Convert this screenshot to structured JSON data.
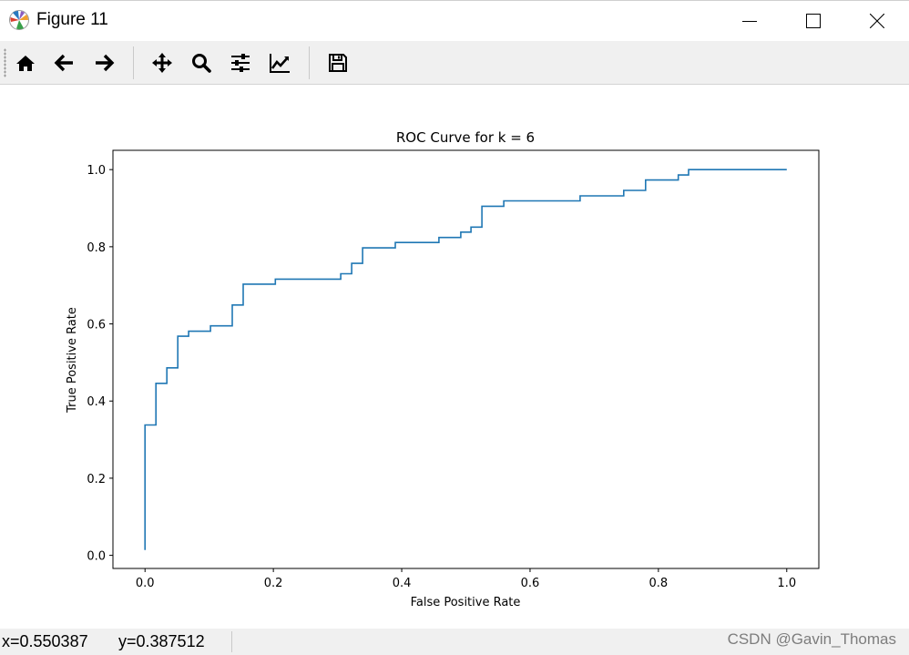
{
  "window": {
    "title": "Figure 11",
    "app_icon": "matplotlib-logo-icon",
    "controls": [
      "minimize-icon",
      "maximize-icon",
      "close-icon"
    ]
  },
  "toolbar": {
    "buttons": [
      {
        "name": "home",
        "icon": "home-icon"
      },
      {
        "name": "back",
        "icon": "arrow-left-icon"
      },
      {
        "name": "forward",
        "icon": "arrow-right-icon"
      },
      {
        "name": "pan",
        "icon": "move-icon"
      },
      {
        "name": "zoom",
        "icon": "magnifier-icon"
      },
      {
        "name": "subplots",
        "icon": "sliders-icon"
      },
      {
        "name": "edit-axis",
        "icon": "line-chart-icon"
      },
      {
        "name": "save",
        "icon": "floppy-disk-icon"
      }
    ]
  },
  "status": {
    "x_readout": "x=0.550387",
    "y_readout": "y=0.387512",
    "watermark": "CSDN @Gavin_Thomas"
  },
  "chart_data": {
    "type": "line",
    "title": "ROC Curve for k = 6",
    "xlabel": "False Positive Rate",
    "ylabel": "True Positive Rate",
    "xlim": [
      -0.05,
      1.05
    ],
    "ylim": [
      -0.034,
      1.05
    ],
    "xticks": [
      0.0,
      0.2,
      0.4,
      0.6,
      0.8,
      1.0
    ],
    "xtick_labels": [
      "0.0",
      "0.2",
      "0.4",
      "0.6",
      "0.8",
      "1.0"
    ],
    "yticks": [
      0.0,
      0.2,
      0.4,
      0.6,
      0.8,
      1.0
    ],
    "ytick_labels": [
      "0.0",
      "0.2",
      "0.4",
      "0.6",
      "0.8",
      "1.0"
    ],
    "grid": false,
    "legend": "none",
    "color": "#1f77b4",
    "series": [
      {
        "x": [
          0.0,
          0.0,
          0.017,
          0.017,
          0.034,
          0.034,
          0.051,
          0.051,
          0.068,
          0.068,
          0.102,
          0.102,
          0.136,
          0.136,
          0.153,
          0.153,
          0.203,
          0.203,
          0.305,
          0.305,
          0.322,
          0.322,
          0.339,
          0.339,
          0.39,
          0.39,
          0.458,
          0.458,
          0.492,
          0.492,
          0.508,
          0.508,
          0.525,
          0.525,
          0.559,
          0.559,
          0.678,
          0.678,
          0.746,
          0.746,
          0.78,
          0.78,
          0.831,
          0.831,
          0.847,
          0.847,
          1.0
        ],
        "y": [
          0.014,
          0.338,
          0.338,
          0.446,
          0.446,
          0.486,
          0.486,
          0.568,
          0.568,
          0.581,
          0.581,
          0.595,
          0.595,
          0.649,
          0.649,
          0.703,
          0.703,
          0.716,
          0.716,
          0.73,
          0.73,
          0.757,
          0.757,
          0.797,
          0.797,
          0.811,
          0.811,
          0.824,
          0.824,
          0.838,
          0.838,
          0.851,
          0.851,
          0.905,
          0.905,
          0.919,
          0.919,
          0.932,
          0.932,
          0.946,
          0.946,
          0.973,
          0.973,
          0.986,
          0.986,
          1.0,
          1.0
        ]
      }
    ]
  }
}
